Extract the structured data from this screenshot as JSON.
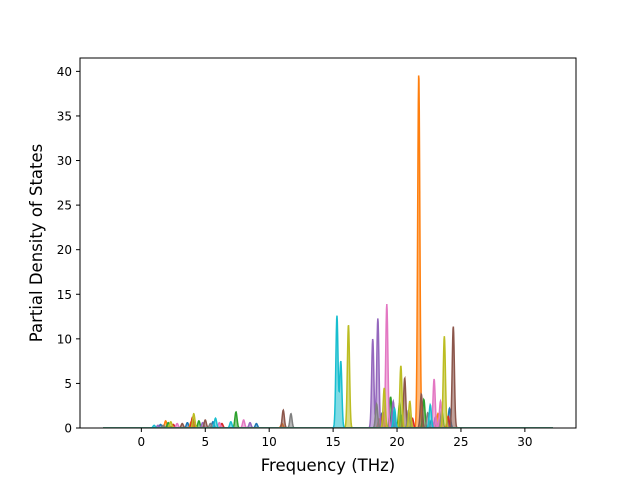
{
  "chart_data": {
    "type": "area",
    "title": "",
    "xlabel": "Frequency (THz)",
    "ylabel": "Partial Density of States",
    "xlim": [
      -4.8,
      34.0
    ],
    "ylim": [
      0,
      41.5
    ],
    "x_ticks": [
      0,
      5,
      10,
      15,
      20,
      25,
      30
    ],
    "y_ticks": [
      0,
      5,
      10,
      15,
      20,
      25,
      30,
      35,
      40
    ],
    "x_tick_labels": [
      "0",
      "5",
      "10",
      "15",
      "20",
      "25",
      "30"
    ],
    "y_tick_labels": [
      "0",
      "5",
      "10",
      "15",
      "20",
      "25",
      "30",
      "35",
      "40"
    ],
    "x_range_of_curves": [
      -3.0,
      32.2
    ],
    "grid": false,
    "legend": "none",
    "series": [
      {
        "color": "#1f77b4",
        "peaks": [
          [
            1.5,
            0.4
          ],
          [
            3.6,
            0.6
          ],
          [
            5.6,
            0.7
          ],
          [
            9.0,
            0.5
          ],
          [
            18.8,
            1.6
          ],
          [
            19.6,
            2.0
          ],
          [
            20.3,
            1.5
          ],
          [
            22.7,
            0.9
          ],
          [
            24.1,
            2.2
          ]
        ]
      },
      {
        "color": "#ff7f0e",
        "peaks": [
          [
            1.9,
            0.8
          ],
          [
            3.9,
            0.7
          ],
          [
            11.0,
            0.5
          ],
          [
            18.6,
            1.0
          ],
          [
            21.7,
            39.8
          ],
          [
            23.2,
            1.6
          ]
        ]
      },
      {
        "color": "#2ca02c",
        "peaks": [
          [
            2.1,
            0.6
          ],
          [
            4.5,
            0.8
          ],
          [
            7.4,
            1.8
          ],
          [
            19.5,
            3.5
          ],
          [
            20.2,
            2.8
          ],
          [
            22.1,
            3.2
          ],
          [
            23.5,
            2.0
          ]
        ]
      },
      {
        "color": "#d62728",
        "peaks": [
          [
            2.5,
            0.4
          ],
          [
            4.0,
            1.2
          ],
          [
            6.3,
            0.5
          ],
          [
            18.9,
            1.8
          ],
          [
            21.2,
            1.1
          ],
          [
            24.0,
            1.3
          ]
        ]
      },
      {
        "color": "#9467bd",
        "peaks": [
          [
            1.3,
            0.3
          ],
          [
            4.8,
            0.6
          ],
          [
            8.5,
            0.6
          ],
          [
            18.1,
            10.0
          ],
          [
            18.5,
            12.3
          ],
          [
            19.7,
            3.0
          ],
          [
            23.0,
            1.2
          ]
        ]
      },
      {
        "color": "#8c564b",
        "peaks": [
          [
            3.2,
            0.5
          ],
          [
            5.0,
            0.9
          ],
          [
            11.1,
            2.0
          ],
          [
            20.6,
            5.6
          ],
          [
            21.9,
            3.8
          ],
          [
            24.4,
            11.4
          ]
        ]
      },
      {
        "color": "#e377c2",
        "peaks": [
          [
            2.8,
            0.5
          ],
          [
            6.1,
            0.6
          ],
          [
            8.0,
            0.9
          ],
          [
            19.2,
            13.9
          ],
          [
            22.9,
            5.5
          ],
          [
            23.4,
            3.0
          ]
        ]
      },
      {
        "color": "#7f7f7f",
        "peaks": [
          [
            1.7,
            0.3
          ],
          [
            5.4,
            0.5
          ],
          [
            11.7,
            1.6
          ],
          [
            18.4,
            2.7
          ],
          [
            20.9,
            2.0
          ],
          [
            22.4,
            1.7
          ]
        ]
      },
      {
        "color": "#bcbd22",
        "peaks": [
          [
            2.3,
            0.7
          ],
          [
            4.1,
            1.6
          ],
          [
            16.2,
            11.6
          ],
          [
            19.0,
            4.5
          ],
          [
            20.3,
            7.0
          ],
          [
            21.0,
            3.0
          ],
          [
            23.7,
            10.3
          ]
        ]
      },
      {
        "color": "#17becf",
        "peaks": [
          [
            1.0,
            0.3
          ],
          [
            5.8,
            1.1
          ],
          [
            7.0,
            0.7
          ],
          [
            15.3,
            12.6
          ],
          [
            15.6,
            7.5
          ],
          [
            19.8,
            2.2
          ],
          [
            22.6,
            2.6
          ]
        ]
      }
    ]
  }
}
